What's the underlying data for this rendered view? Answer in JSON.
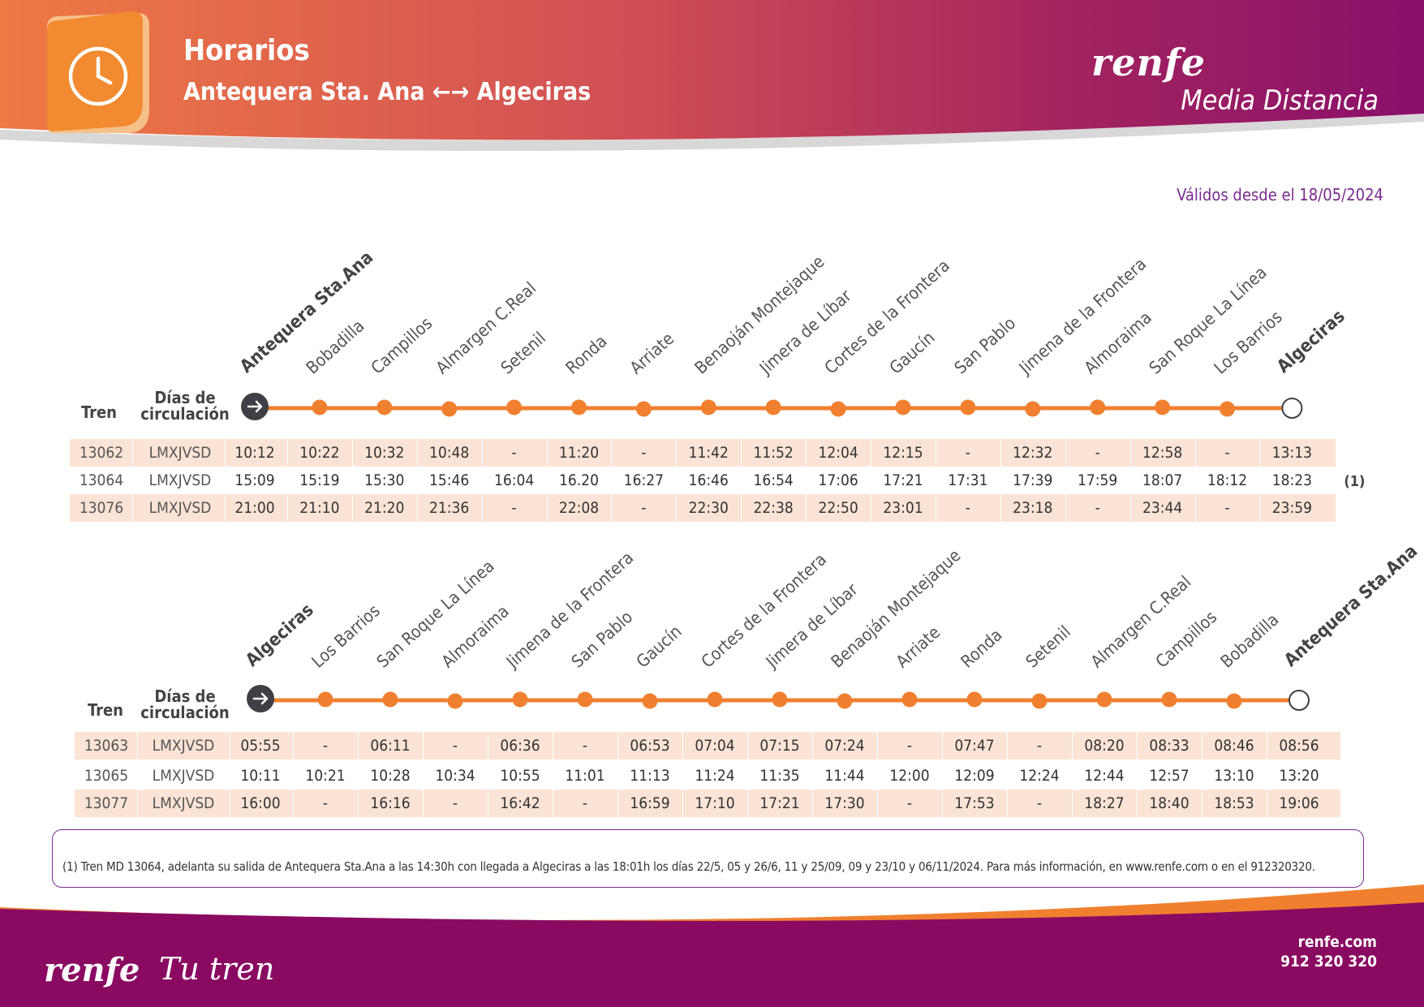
{
  "header": {
    "title": "Horarios",
    "route_from": "Antequera Sta. Ana",
    "route_arrows": "←→",
    "route_to": "Algeciras",
    "brand": "renfe",
    "brand_sub": "Media Distancia"
  },
  "valid_from": "Válidos desde el 18/05/2024",
  "colors": {
    "orange": "#f08030",
    "purple": "#8a1a6e",
    "shade": "#fbe3d5",
    "accent_text": "#7a2a8e"
  },
  "table1": {
    "col_train": "Tren",
    "col_days_1": "Días de",
    "col_days_2": "circulación",
    "stations": [
      "Antequera Sta.Ana",
      "Bobadilla",
      "Campillos",
      "Almargen C.Real",
      "Setenil",
      "Ronda",
      "Arriate",
      "Benaoján Montejaque",
      "Jimera de Líbar",
      "Cortes de la Frontera",
      "Gaucín",
      "San Pablo",
      "Jimena de la Frontera",
      "Almoraima",
      "San Roque La Línea",
      "Los Barrios",
      "Algeciras"
    ],
    "rows": [
      {
        "train": "13062",
        "days": "LMXJVSD",
        "times": [
          "10:12",
          "10:22",
          "10:32",
          "10:48",
          "-",
          "11:20",
          "-",
          "11:42",
          "11:52",
          "12:04",
          "12:15",
          "-",
          "12:32",
          "-",
          "12:58",
          "-",
          "13:13"
        ],
        "note": ""
      },
      {
        "train": "13064",
        "days": "LMXJVSD",
        "times": [
          "15:09",
          "15:19",
          "15:30",
          "15:46",
          "16:04",
          "16.20",
          "16:27",
          "16:46",
          "16:54",
          "17:06",
          "17:21",
          "17:31",
          "17:39",
          "17:59",
          "18:07",
          "18:12",
          "18:23"
        ],
        "note": "(1)"
      },
      {
        "train": "13076",
        "days": "LMXJVSD",
        "times": [
          "21:00",
          "21:10",
          "21:20",
          "21:36",
          "-",
          "22:08",
          "-",
          "22:30",
          "22:38",
          "22:50",
          "23:01",
          "-",
          "23:18",
          "-",
          "23:44",
          "-",
          "23:59"
        ],
        "note": ""
      }
    ]
  },
  "table2": {
    "col_train": "Tren",
    "col_days_1": "Días de",
    "col_days_2": "circulación",
    "stations": [
      "Algeciras",
      "Los Barrios",
      "San Roque La Línea",
      "Almoraima",
      "Jimena de la Frontera",
      "San Pablo",
      "Gaucín",
      "Cortes de la Frontera",
      "Jimera de Líbar",
      "Benaoján Montejaque",
      "Arriate",
      "Ronda",
      "Setenil",
      "Almargen C.Real",
      "Campillos",
      "Bobadilla",
      "Antequera Sta.Ana"
    ],
    "rows": [
      {
        "train": "13063",
        "days": "LMXJVSD",
        "times": [
          "05:55",
          "-",
          "06:11",
          "-",
          "06:36",
          "-",
          "06:53",
          "07:04",
          "07:15",
          "07:24",
          "-",
          "07:47",
          "-",
          "08:20",
          "08:33",
          "08:46",
          "08:56"
        ]
      },
      {
        "train": "13065",
        "days": "LMXJVSD",
        "times": [
          "10:11",
          "10:21",
          "10:28",
          "10:34",
          "10:55",
          "11:01",
          "11:13",
          "11:24",
          "11:35",
          "11:44",
          "12:00",
          "12:09",
          "12:24",
          "12:44",
          "12:57",
          "13:10",
          "13:20"
        ]
      },
      {
        "train": "13077",
        "days": "LMXJVSD",
        "times": [
          "16:00",
          "-",
          "16:16",
          "-",
          "16:42",
          "-",
          "16:59",
          "17:10",
          "17:21",
          "17:30",
          "-",
          "17:53",
          "-",
          "18:27",
          "18:40",
          "18:53",
          "19:06"
        ]
      }
    ]
  },
  "note": {
    "text": "(1)   Tren MD 13064, adelanta su salida de Antequera Sta.Ana a las 14:30h con llegada a Algeciras a las 18:01h los días 22/5, 05 y 26/6, 11 y 25/09, 09 y 23/10 y 06/11/2024. Para más información, en www.renfe.com o en el 912320320."
  },
  "footer": {
    "logo": "renfe",
    "slogan": "Tu tren",
    "web": "renfe.com",
    "phone": "912 320 320"
  }
}
